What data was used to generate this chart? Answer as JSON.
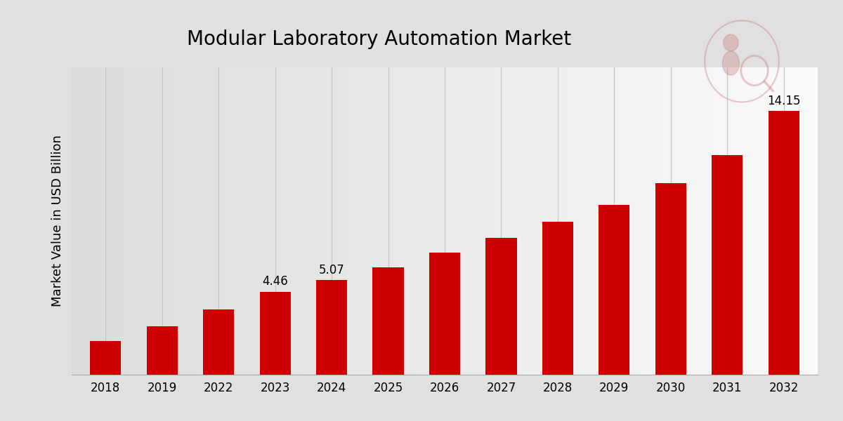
{
  "title": "Modular Laboratory Automation Market",
  "ylabel": "Market Value in USD Billion",
  "categories": [
    "2018",
    "2019",
    "2022",
    "2023",
    "2024",
    "2025",
    "2026",
    "2027",
    "2028",
    "2029",
    "2030",
    "2031",
    "2032"
  ],
  "values": [
    1.8,
    2.6,
    3.5,
    4.46,
    5.07,
    5.75,
    6.55,
    7.35,
    8.2,
    9.1,
    10.3,
    11.8,
    14.15
  ],
  "bar_color": "#CC0000",
  "label_values": [
    null,
    null,
    null,
    "4.46",
    "5.07",
    null,
    null,
    null,
    null,
    null,
    null,
    null,
    "14.15"
  ],
  "bg_color_left": "#D8D8D8",
  "bg_color_right": "#F0F0F0",
  "grid_color": "#C0C0C0",
  "title_fontsize": 20,
  "ylabel_fontsize": 13,
  "tick_fontsize": 12,
  "label_fontsize": 12,
  "ylim_max": 16.5,
  "bar_width": 0.55
}
